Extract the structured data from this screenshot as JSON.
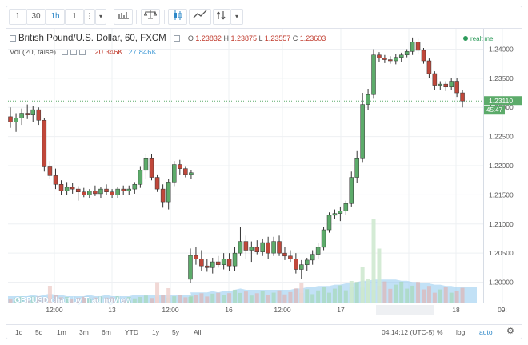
{
  "toolbar": {
    "interval_buttons": [
      "1",
      "30",
      "1h",
      "1"
    ],
    "active_interval": "1h",
    "icons": [
      "more-vertical-icon",
      "chevron-down-icon",
      "bar-chart-icon",
      "compare-scales-icon",
      "candles-icon",
      "indicators-icon",
      "drawing-icon",
      "chevron-down-icon"
    ]
  },
  "legend": {
    "title": "British Pound/U.S. Dollar, 60, FXCM",
    "o_label": "O",
    "o": "1.23832",
    "h_label": "H",
    "h": "1.23875",
    "l_label": "L",
    "l": "1.23557",
    "c_label": "C",
    "c": "1.23603",
    "vol_label": "Vol (20, false)",
    "vol1": "20.346K",
    "vol2": "27.846K",
    "realtime": "realtime"
  },
  "price_axis": {
    "ticks": [
      "1.24000",
      "1.23500",
      "1.23000",
      "1.22500",
      "1.22000",
      "1.21500",
      "1.21000",
      "1.20500",
      "1.20000"
    ],
    "last_price": "1.23110",
    "countdown": "45:47"
  },
  "time_axis": {
    "ticks": [
      "12:00",
      "13",
      "12:00",
      "16",
      "12:00",
      "17",
      "12:00",
      "18",
      "09:"
    ],
    "crosshair": "04:14:12 (UTC-5)"
  },
  "watermark": "GBPUSD chart by TradingView",
  "bottom_bar": {
    "ranges": [
      "1d",
      "5d",
      "1m",
      "3m",
      "6m",
      "YTD",
      "1y",
      "5y",
      "All"
    ],
    "percent": "%",
    "log": "log",
    "auto": "auto",
    "icon": "gear-icon"
  },
  "colors": {
    "up": "#5cab6a",
    "down": "#c0473a",
    "volume": "#8fc9ef",
    "grid": "#eef0f3"
  },
  "chart_data": {
    "type": "candlestick",
    "symbol": "GBPUSD",
    "interval": "60",
    "ylim": [
      1.1965,
      1.2435
    ],
    "candles": [
      [
        1.2284,
        1.23,
        1.2265,
        1.2275
      ],
      [
        1.2275,
        1.229,
        1.2258,
        1.2282
      ],
      [
        1.2282,
        1.2298,
        1.227,
        1.229
      ],
      [
        1.229,
        1.2305,
        1.228,
        1.2287
      ],
      [
        1.2287,
        1.2302,
        1.2275,
        1.2296
      ],
      [
        1.2296,
        1.23,
        1.227,
        1.2278
      ],
      [
        1.2278,
        1.2282,
        1.219,
        1.2198
      ],
      [
        1.2198,
        1.2208,
        1.2178,
        1.2183
      ],
      [
        1.2183,
        1.2195,
        1.216,
        1.2168
      ],
      [
        1.2168,
        1.2175,
        1.215,
        1.2157
      ],
      [
        1.2157,
        1.2172,
        1.215,
        1.2163
      ],
      [
        1.2163,
        1.217,
        1.2152,
        1.216
      ],
      [
        1.216,
        1.2165,
        1.214,
        1.2155
      ],
      [
        1.2155,
        1.2162,
        1.2146,
        1.215
      ],
      [
        1.215,
        1.216,
        1.2145,
        1.2157
      ],
      [
        1.2157,
        1.2166,
        1.2148,
        1.2152
      ],
      [
        1.2152,
        1.2164,
        1.2145,
        1.216
      ],
      [
        1.216,
        1.2168,
        1.215,
        1.2155
      ],
      [
        1.2155,
        1.216,
        1.2145,
        1.215
      ],
      [
        1.215,
        1.2164,
        1.2145,
        1.216
      ],
      [
        1.216,
        1.2166,
        1.215,
        1.2157
      ],
      [
        1.2157,
        1.2166,
        1.215,
        1.216
      ],
      [
        1.216,
        1.2172,
        1.2152,
        1.2168
      ],
      [
        1.2168,
        1.2198,
        1.2162,
        1.2192
      ],
      [
        1.2192,
        1.222,
        1.2178,
        1.2212
      ],
      [
        1.2212,
        1.222,
        1.2175,
        1.218
      ],
      [
        1.218,
        1.2185,
        1.2155,
        1.216
      ],
      [
        1.216,
        1.2168,
        1.2128,
        1.2138
      ],
      [
        1.2138,
        1.2178,
        1.2125,
        1.2172
      ],
      [
        1.2172,
        1.2208,
        1.2165,
        1.2202
      ],
      [
        1.2202,
        1.221,
        1.2185,
        1.2195
      ],
      [
        1.2195,
        1.2198,
        1.218,
        1.2185
      ],
      [
        1.2185,
        1.2192,
        1.2178,
        1.2188
      ],
      [
        1.2005,
        1.2058,
        1.1998,
        1.2046
      ],
      [
        1.2046,
        1.206,
        1.203,
        1.204
      ],
      [
        1.204,
        1.2055,
        1.202,
        1.2028
      ],
      [
        1.2028,
        1.204,
        1.2018,
        1.2025
      ],
      [
        1.2025,
        1.2042,
        1.2015,
        1.2035
      ],
      [
        1.2035,
        1.2045,
        1.2025,
        1.203
      ],
      [
        1.203,
        1.205,
        1.2022,
        1.204
      ],
      [
        1.204,
        1.205,
        1.202,
        1.2028
      ],
      [
        1.2028,
        1.206,
        1.202,
        1.205
      ],
      [
        1.205,
        1.2095,
        1.2045,
        1.207
      ],
      [
        1.207,
        1.208,
        1.204,
        1.2055
      ],
      [
        1.2055,
        1.207,
        1.2035,
        1.206
      ],
      [
        1.206,
        1.2072,
        1.2048,
        1.2052
      ],
      [
        1.2052,
        1.2075,
        1.2045,
        1.2068
      ],
      [
        1.2068,
        1.2078,
        1.204,
        1.205
      ],
      [
        1.205,
        1.2078,
        1.2045,
        1.207
      ],
      [
        1.207,
        1.208,
        1.2045,
        1.205
      ],
      [
        1.205,
        1.206,
        1.2038,
        1.2045
      ],
      [
        1.2045,
        1.2055,
        1.2035,
        1.204
      ],
      [
        1.204,
        1.205,
        1.2015,
        1.2022
      ],
      [
        1.2022,
        1.2038,
        1.2005,
        1.203
      ],
      [
        1.203,
        1.2042,
        1.202,
        1.2038
      ],
      [
        1.2038,
        1.2055,
        1.203,
        1.2048
      ],
      [
        1.2048,
        1.2068,
        1.204,
        1.206
      ],
      [
        1.206,
        1.2095,
        1.2055,
        1.209
      ],
      [
        1.209,
        1.212,
        1.2085,
        1.2115
      ],
      [
        1.2115,
        1.2125,
        1.2108,
        1.2118
      ],
      [
        1.2118,
        1.213,
        1.2105,
        1.2122
      ],
      [
        1.2122,
        1.214,
        1.2115,
        1.2135
      ],
      [
        1.2135,
        1.219,
        1.213,
        1.218
      ],
      [
        1.218,
        1.2225,
        1.217,
        1.2212
      ],
      [
        1.2212,
        1.2325,
        1.2205,
        1.2305
      ],
      [
        1.2305,
        1.2332,
        1.2295,
        1.2322
      ],
      [
        1.2322,
        1.24,
        1.2315,
        1.239
      ],
      [
        1.239,
        1.2395,
        1.2378,
        1.2385
      ],
      [
        1.2385,
        1.239,
        1.2376,
        1.2382
      ],
      [
        1.2382,
        1.2388,
        1.2375,
        1.238
      ],
      [
        1.238,
        1.2392,
        1.2374,
        1.2386
      ],
      [
        1.2386,
        1.2394,
        1.2378,
        1.239
      ],
      [
        1.239,
        1.24,
        1.2386,
        1.2396
      ],
      [
        1.2396,
        1.242,
        1.239,
        1.2412
      ],
      [
        1.2412,
        1.2418,
        1.2392,
        1.2398
      ],
      [
        1.2398,
        1.2402,
        1.2375,
        1.238
      ],
      [
        1.238,
        1.2384,
        1.235,
        1.2358
      ],
      [
        1.2358,
        1.2362,
        1.233,
        1.2338
      ],
      [
        1.2338,
        1.2345,
        1.233,
        1.234
      ],
      [
        1.234,
        1.2345,
        1.2328,
        1.2335
      ],
      [
        1.2335,
        1.235,
        1.233,
        1.2345
      ],
      [
        1.2345,
        1.235,
        1.2318,
        1.2325
      ],
      [
        1.2325,
        1.233,
        1.23,
        1.2311
      ]
    ],
    "volume": [
      5,
      5,
      5,
      5,
      6,
      5,
      6,
      7,
      6,
      6,
      5,
      5,
      5,
      5,
      6,
      5,
      5,
      6,
      5,
      5,
      5,
      5,
      6,
      6,
      6,
      6,
      6,
      6,
      6,
      6,
      6,
      6,
      6,
      8,
      8,
      8,
      8,
      9,
      8,
      9,
      9,
      10,
      11,
      10,
      10,
      10,
      10,
      10,
      10,
      10,
      10,
      10,
      11,
      11,
      12,
      12,
      13,
      13,
      13,
      14,
      14,
      15,
      15,
      16,
      17,
      17,
      18,
      18,
      18,
      18,
      18,
      17,
      17,
      16,
      16,
      15,
      15,
      14,
      14,
      13,
      13,
      12,
      12
    ],
    "bg_volume": [
      {
        "i": 7,
        "v": 14,
        "dir": "down"
      },
      {
        "i": 26,
        "v": 17,
        "dir": "down"
      },
      {
        "i": 28,
        "v": 12,
        "dir": "down"
      },
      {
        "i": 53,
        "v": 16,
        "dir": "down"
      },
      {
        "i": 62,
        "v": 18,
        "dir": "up"
      },
      {
        "i": 64,
        "v": 30,
        "dir": "up"
      },
      {
        "i": 65,
        "v": 20,
        "dir": "up"
      },
      {
        "i": 66,
        "v": 70,
        "dir": "up"
      },
      {
        "i": 67,
        "v": 45,
        "dir": "up"
      }
    ]
  }
}
